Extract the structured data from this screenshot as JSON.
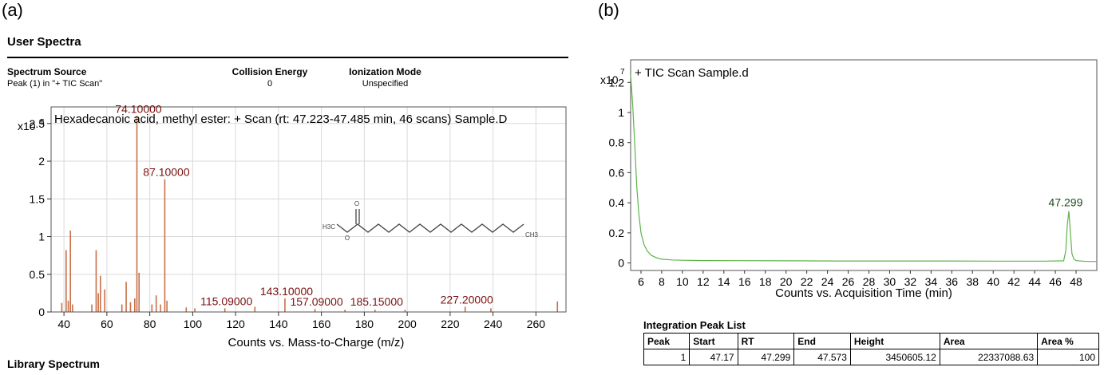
{
  "panel_a": {
    "label": "(a)",
    "heading": "User Spectra",
    "source": {
      "spectrum_source_label": "Spectrum Source",
      "spectrum_source_value": "Peak (1) in \"+ TIC Scan\"",
      "collision_label": "Collision Energy",
      "collision_value": "0",
      "ionization_label": "Ionization Mode",
      "ionization_value": "Unspecified"
    },
    "footer_heading": "Library Spectrum",
    "structure_labels": {
      "left": "H3C",
      "right": "CH3"
    }
  },
  "panel_b": {
    "label": "(b)",
    "peak_list": {
      "title": "Integration Peak List",
      "headers": [
        "Peak",
        "Start",
        "RT",
        "End",
        "Height",
        "Area",
        "Area %"
      ],
      "rows": [
        [
          "1",
          "47.17",
          "47.299",
          "47.573",
          "3450605.12",
          "22337088.63",
          "100"
        ]
      ]
    }
  },
  "chart_data": [
    {
      "type": "bar",
      "title": "Hexadecanoic acid, methyl ester: + Scan (rt: 47.223-47.485 min, 46 scans) Sample.D",
      "y_scale_label": "x10",
      "y_scale_exp": "5",
      "xlabel": "Counts vs. Mass-to-Charge (m/z)",
      "xlim": [
        34,
        274
      ],
      "ylim": [
        0,
        2.72
      ],
      "xticks": [
        40,
        60,
        80,
        100,
        120,
        140,
        160,
        180,
        200,
        220,
        240,
        260
      ],
      "yticks": [
        "0",
        "0.5",
        "1",
        "1.5",
        "2",
        "2.5"
      ],
      "grid": true,
      "color": "#c8704a",
      "peaks": [
        {
          "x": 39,
          "y": 0.12
        },
        {
          "x": 41,
          "y": 0.82
        },
        {
          "x": 42,
          "y": 0.15
        },
        {
          "x": 43,
          "y": 1.08
        },
        {
          "x": 44,
          "y": 0.1
        },
        {
          "x": 53,
          "y": 0.1
        },
        {
          "x": 55,
          "y": 0.82
        },
        {
          "x": 56,
          "y": 0.25
        },
        {
          "x": 57,
          "y": 0.48
        },
        {
          "x": 59,
          "y": 0.3
        },
        {
          "x": 67,
          "y": 0.1
        },
        {
          "x": 69,
          "y": 0.4
        },
        {
          "x": 71,
          "y": 0.13
        },
        {
          "x": 73,
          "y": 0.18
        },
        {
          "x": 74,
          "y": 2.6
        },
        {
          "x": 75,
          "y": 0.52
        },
        {
          "x": 81,
          "y": 0.1
        },
        {
          "x": 83,
          "y": 0.22
        },
        {
          "x": 85,
          "y": 0.1
        },
        {
          "x": 87,
          "y": 1.76
        },
        {
          "x": 88,
          "y": 0.15
        },
        {
          "x": 97,
          "y": 0.06
        },
        {
          "x": 101,
          "y": 0.05
        },
        {
          "x": 115,
          "y": 0.05
        },
        {
          "x": 129,
          "y": 0.07
        },
        {
          "x": 143,
          "y": 0.18
        },
        {
          "x": 157,
          "y": 0.04
        },
        {
          "x": 171,
          "y": 0.03
        },
        {
          "x": 185,
          "y": 0.03
        },
        {
          "x": 199,
          "y": 0.03
        },
        {
          "x": 227,
          "y": 0.07
        },
        {
          "x": 239,
          "y": 0.05
        },
        {
          "x": 270,
          "y": 0.14
        }
      ],
      "annotations": [
        {
          "text": "74.10000",
          "x": 74,
          "y": 2.6
        },
        {
          "text": "87.10000",
          "x": 87,
          "y": 1.76
        },
        {
          "text": "115.09000",
          "x": 115,
          "y": 0.05
        },
        {
          "text": "143.10000",
          "x": 143,
          "y": 0.18
        },
        {
          "text": "157.09000",
          "x": 157,
          "y": 0.04
        },
        {
          "text": "185.15000",
          "x": 185,
          "y": 0.03
        },
        {
          "text": "227.20000",
          "x": 227,
          "y": 0.07
        }
      ]
    },
    {
      "type": "line",
      "title": "+ TIC Scan Sample.d",
      "y_scale_label": "x10",
      "y_scale_exp": "7",
      "xlabel": "Counts vs. Acquisition Time (min)",
      "xlim": [
        5,
        50
      ],
      "ylim": [
        -0.05,
        1.35
      ],
      "xticks": [
        6,
        8,
        10,
        12,
        14,
        16,
        18,
        20,
        22,
        24,
        26,
        28,
        30,
        32,
        34,
        36,
        38,
        40,
        42,
        44,
        46,
        48
      ],
      "yticks": [
        "0",
        "0.2",
        "0.4",
        "0.6",
        "0.8",
        "1",
        "1.2"
      ],
      "grid": false,
      "color": "#5fb34a",
      "x": [
        5,
        5.2,
        5.4,
        5.6,
        5.8,
        6,
        6.3,
        6.6,
        7,
        7.5,
        8,
        9,
        10,
        12,
        15,
        20,
        25,
        30,
        35,
        40,
        45,
        46.8,
        47.0,
        47.15,
        47.3,
        47.45,
        47.6,
        47.8,
        48,
        49,
        50
      ],
      "y": [
        1.25,
        1.05,
        0.78,
        0.5,
        0.32,
        0.2,
        0.12,
        0.08,
        0.05,
        0.035,
        0.025,
        0.02,
        0.018,
        0.016,
        0.015,
        0.014,
        0.013,
        0.013,
        0.013,
        0.012,
        0.012,
        0.014,
        0.08,
        0.25,
        0.345,
        0.2,
        0.06,
        0.025,
        0.015,
        0.01,
        0.01
      ],
      "annotations": [
        {
          "text": "47.299",
          "x": 47.299,
          "y": 0.345
        }
      ]
    }
  ]
}
